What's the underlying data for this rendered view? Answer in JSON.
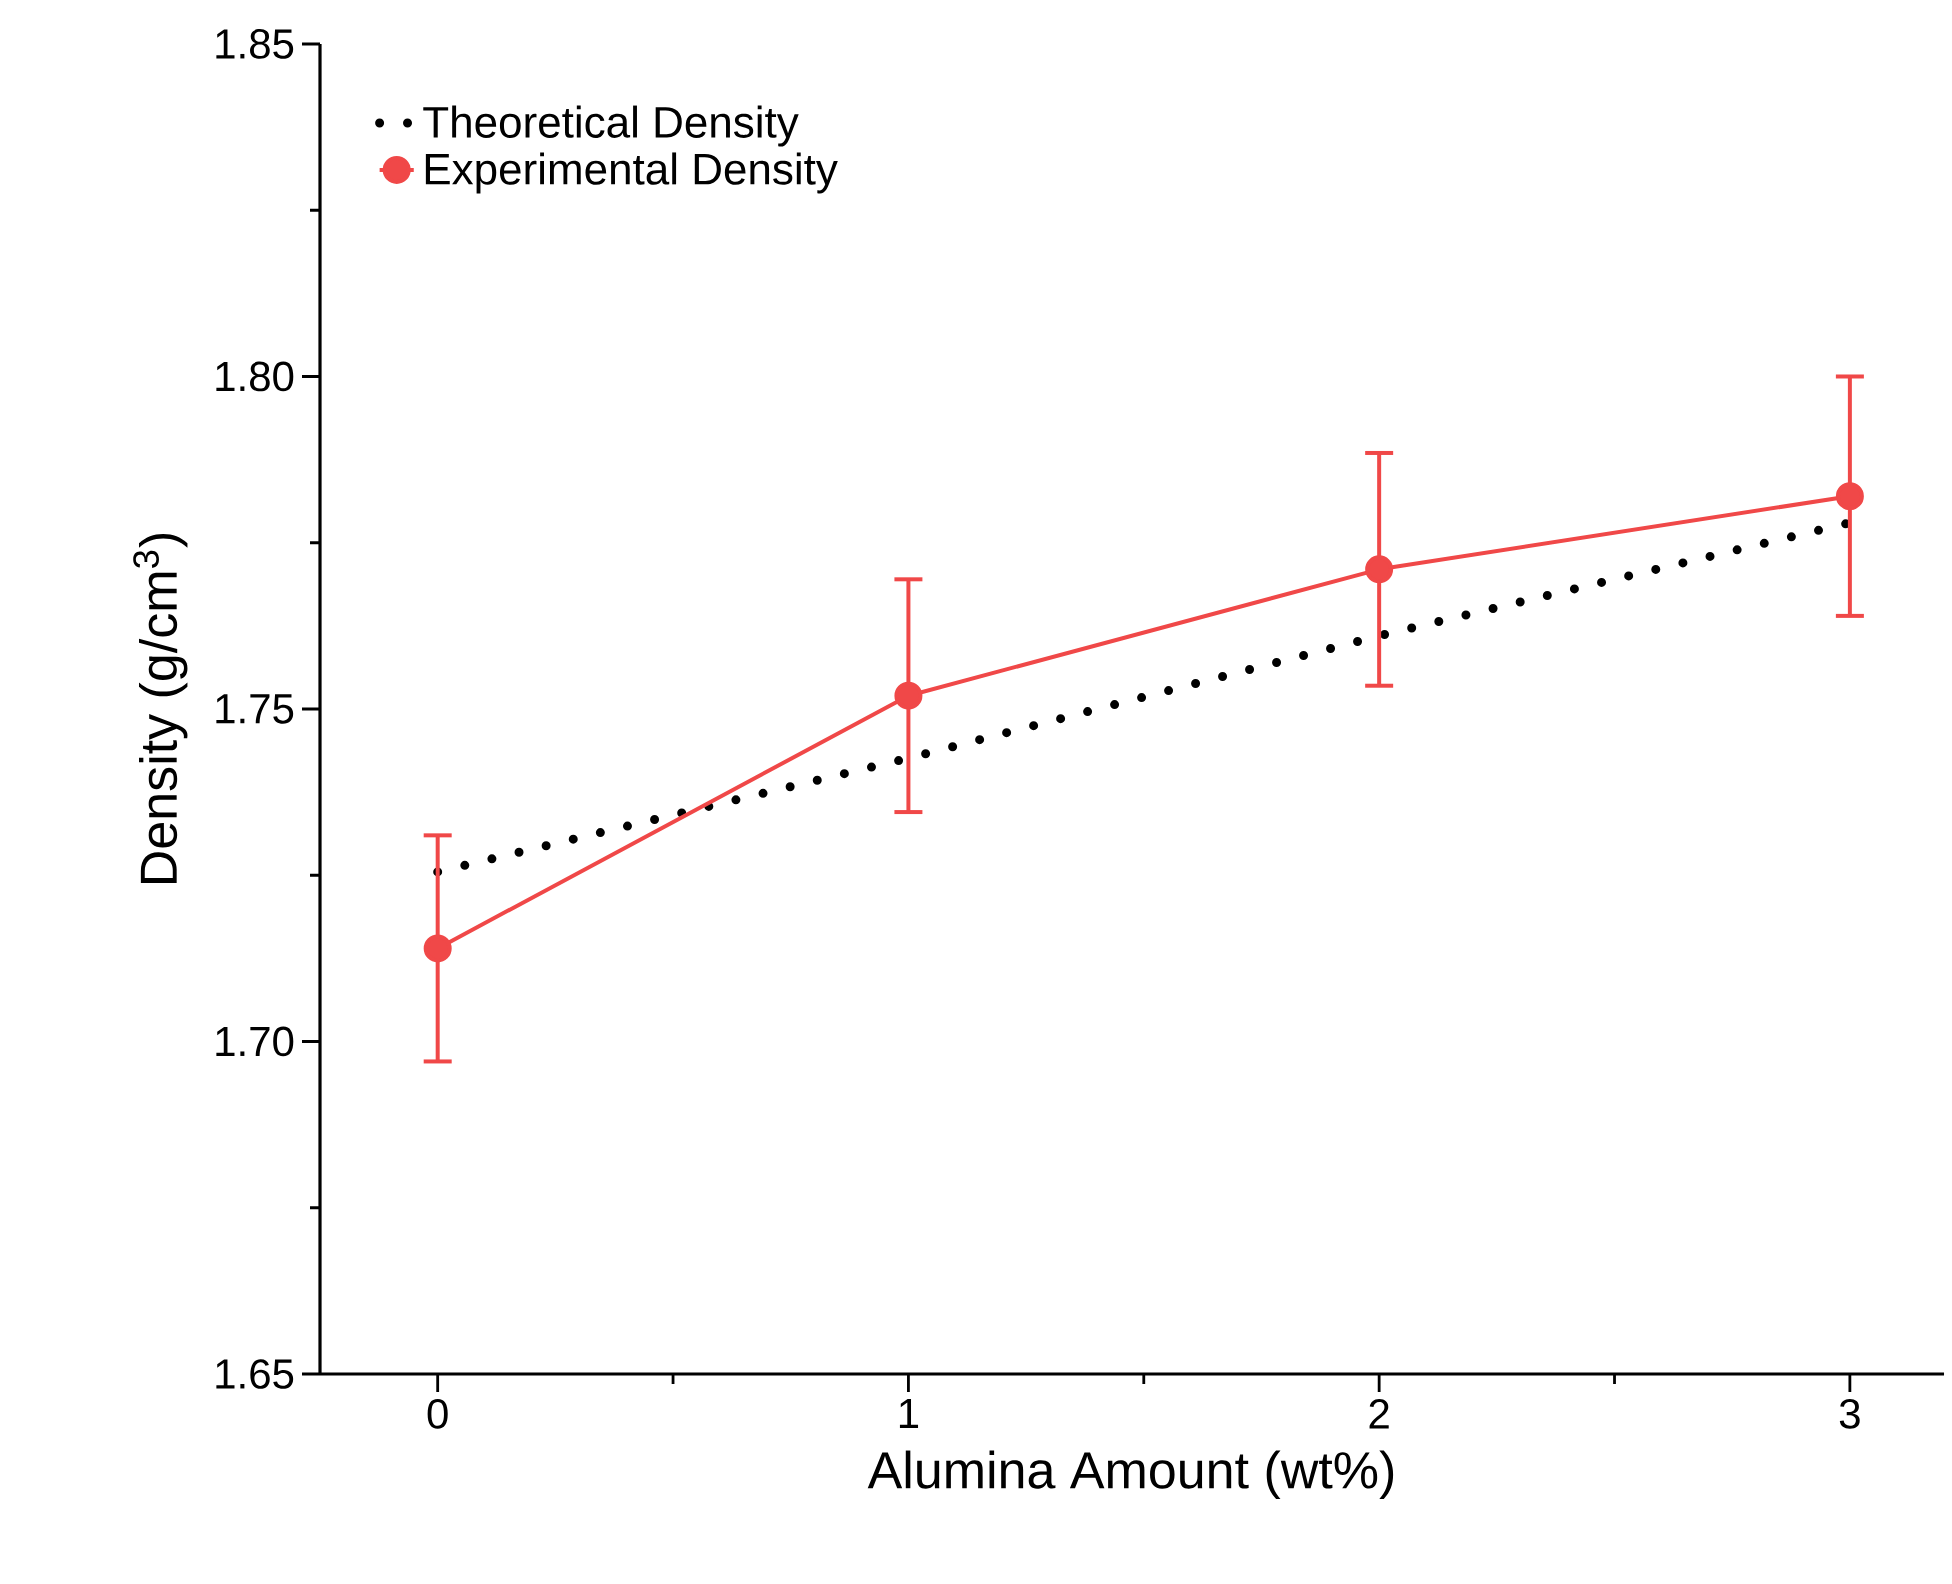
{
  "chart_data": {
    "type": "line",
    "xlabel": "Alumina Amount (wt%)",
    "ylabel": "Density (g/cm$^{3}$)",
    "x": [
      0,
      1,
      2,
      3
    ],
    "xlim": [
      -0.25,
      3.2
    ],
    "xticks": [
      0,
      1,
      2,
      3
    ],
    "ylim": [
      1.65,
      1.85
    ],
    "yticks": [
      1.65,
      {
        "value": 1.7,
        "label": "1.70"
      },
      1.75,
      {
        "value": 1.8,
        "label": "1.80"
      },
      1.85
    ],
    "legend": "top left",
    "grid": false,
    "series": [
      {
        "name": "Theoretical Density",
        "color": "#000000",
        "values": [
          1.7255,
          1.7426,
          1.761,
          1.778
        ],
        "marker": "none",
        "line_style": "dotted"
      },
      {
        "name": "Experimental Density",
        "color": "#f04848",
        "values": [
          1.714,
          1.752,
          1.771,
          1.782
        ],
        "errors": [
          0.017,
          0.0175,
          0.0175,
          0.018
        ],
        "marker": "circle",
        "line_style": "solid"
      }
    ]
  }
}
